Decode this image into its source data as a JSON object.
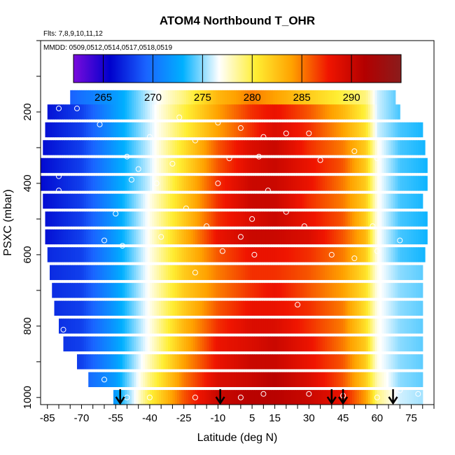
{
  "chart_data": {
    "type": "heatmap",
    "title": "ATOM4 Northbound T_OHR",
    "flights_label": "Flts: 7,8,9,10,11,12",
    "dates_label": "MMDD: 0509,0512,0514,0517,0518,0519",
    "xlabel": "Latitude (deg N)",
    "ylabel": "PSXC (mbar)",
    "xlim": [
      -88,
      85
    ],
    "ylim": [
      1020,
      0
    ],
    "x_ticks": [
      -85,
      -70,
      -55,
      -40,
      -25,
      -10,
      5,
      15,
      30,
      45,
      60,
      75
    ],
    "x_tick_labels": [
      "-85",
      "-70",
      "-55",
      "-40",
      "-25",
      "-10",
      "5",
      "15",
      "30",
      "45",
      "60",
      "75"
    ],
    "y_ticks": [
      200,
      400,
      600,
      800,
      1000
    ],
    "y_tick_labels": [
      "200",
      "400",
      "600",
      "800",
      "1000"
    ],
    "colorbar": {
      "range": [
        262,
        295
      ],
      "ticks": [
        265,
        270,
        275,
        280,
        285,
        290
      ],
      "tick_labels": [
        "265",
        "270",
        "275",
        "280",
        "285",
        "290"
      ],
      "colors": [
        "#7a0bdc",
        "#0000cc",
        "#1a64ff",
        "#00b0ff",
        "#ffffff",
        "#ffee33",
        "#ffa200",
        "#f01500",
        "#b30000",
        "#8a1c1c"
      ]
    },
    "pressure_levels": [
      160,
      200,
      250,
      300,
      350,
      400,
      450,
      500,
      550,
      600,
      650,
      700,
      750,
      800,
      850,
      900,
      950,
      1000
    ],
    "latitude_bounds": [
      [
        -75,
        68
      ],
      [
        -85,
        70
      ],
      [
        -86,
        80
      ],
      [
        -87,
        81
      ],
      [
        -88,
        82
      ],
      [
        -88,
        82
      ],
      [
        -87,
        80
      ],
      [
        -86,
        82
      ],
      [
        -86,
        82
      ],
      [
        -85,
        81
      ],
      [
        -84,
        80
      ],
      [
        -83,
        80
      ],
      [
        -82,
        80
      ],
      [
        -80,
        80
      ],
      [
        -78,
        80
      ],
      [
        -72,
        80
      ],
      [
        -67,
        80
      ],
      [
        -56,
        80
      ]
    ],
    "temperature_anchors": {
      "latitudes": [
        -88,
        -70,
        -55,
        -40,
        -25,
        -10,
        5,
        15,
        30,
        45,
        55,
        60,
        70,
        85
      ],
      "rows": [
        [
          267,
          270,
          272,
          276,
          279,
          283,
          285,
          284,
          282,
          280,
          279,
          276,
          274,
          273
        ],
        [
          266,
          268,
          272,
          276,
          280,
          284,
          287,
          288,
          286,
          283,
          280,
          276,
          274,
          273
        ],
        [
          266,
          268,
          272,
          276,
          280,
          284,
          287,
          289,
          287,
          284,
          281,
          276,
          274,
          273
        ],
        [
          266,
          268,
          272,
          276,
          281,
          286,
          289,
          290,
          287,
          285,
          282,
          277,
          274,
          273
        ],
        [
          266,
          268,
          272,
          276,
          281,
          286,
          289,
          290,
          288,
          286,
          282,
          277,
          274,
          273
        ],
        [
          266,
          268,
          272,
          276,
          282,
          287,
          290,
          290,
          288,
          285,
          282,
          277,
          274,
          273
        ],
        [
          266,
          268,
          272,
          277,
          282,
          287,
          290,
          290,
          287,
          285,
          282,
          277,
          274,
          273
        ],
        [
          266,
          268,
          272,
          277,
          282,
          287,
          289,
          290,
          288,
          286,
          282,
          277,
          274,
          273
        ],
        [
          266,
          268,
          272,
          277,
          283,
          288,
          290,
          290,
          289,
          286,
          283,
          277,
          274,
          273
        ],
        [
          267,
          268,
          272,
          277,
          282,
          286,
          288,
          288,
          287,
          285,
          282,
          277,
          274,
          273
        ],
        [
          267,
          268,
          272,
          277,
          282,
          285,
          287,
          287,
          286,
          284,
          281,
          277,
          275,
          274
        ],
        [
          267,
          268,
          272,
          277,
          282,
          285,
          287,
          288,
          286,
          284,
          281,
          277,
          275,
          274
        ],
        [
          267,
          268,
          272,
          277,
          282,
          286,
          288,
          288,
          287,
          285,
          281,
          277,
          275,
          274
        ],
        [
          267,
          268,
          272,
          277,
          283,
          287,
          289,
          289,
          287,
          285,
          281,
          277,
          275,
          274
        ],
        [
          267,
          268,
          272,
          277,
          283,
          288,
          289,
          290,
          288,
          285,
          282,
          277,
          275,
          274
        ],
        [
          267,
          268,
          272,
          278,
          284,
          288,
          290,
          290,
          288,
          286,
          282,
          277,
          275,
          274
        ],
        [
          268,
          269,
          272,
          279,
          285,
          289,
          290,
          291,
          289,
          286,
          282,
          278,
          275,
          274
        ],
        [
          268,
          269,
          272,
          280,
          286,
          290,
          291,
          291,
          290,
          288,
          284,
          279,
          276,
          275
        ]
      ]
    },
    "profile_markers_latitude": [
      -53,
      -9,
      40,
      45,
      67
    ],
    "sample_points": [
      [
        -80,
        190
      ],
      [
        -72,
        190
      ],
      [
        -62,
        235
      ],
      [
        -27,
        215
      ],
      [
        -10,
        230
      ],
      [
        0,
        245
      ],
      [
        -40,
        270
      ],
      [
        -20,
        280
      ],
      [
        10,
        270
      ],
      [
        20,
        260
      ],
      [
        30,
        260
      ],
      [
        -50,
        325
      ],
      [
        -5,
        330
      ],
      [
        8,
        325
      ],
      [
        35,
        335
      ],
      [
        50,
        310
      ],
      [
        60,
        330
      ],
      [
        -30,
        345
      ],
      [
        -45,
        360
      ],
      [
        -10,
        400
      ],
      [
        12,
        420
      ],
      [
        -48,
        390
      ],
      [
        -37,
        400
      ],
      [
        -80,
        380
      ],
      [
        20,
        480
      ],
      [
        5,
        500
      ],
      [
        -24,
        470
      ],
      [
        -55,
        485
      ],
      [
        -60,
        560
      ],
      [
        -15,
        520
      ],
      [
        0,
        550
      ],
      [
        28,
        520
      ],
      [
        58,
        520
      ],
      [
        70,
        560
      ],
      [
        -35,
        550
      ],
      [
        -8,
        590
      ],
      [
        6,
        600
      ],
      [
        40,
        600
      ],
      [
        50,
        610
      ],
      [
        60,
        590
      ],
      [
        -52,
        575
      ],
      [
        -80,
        420
      ],
      [
        -78,
        810
      ],
      [
        -20,
        650
      ],
      [
        25,
        740
      ],
      [
        -60,
        950
      ],
      [
        -50,
        1000
      ],
      [
        -20,
        1000
      ],
      [
        0,
        1000
      ],
      [
        10,
        990
      ],
      [
        30,
        990
      ],
      [
        45,
        995
      ],
      [
        60,
        1000
      ],
      [
        70,
        980
      ],
      [
        78,
        990
      ],
      [
        -40,
        1000
      ]
    ]
  }
}
